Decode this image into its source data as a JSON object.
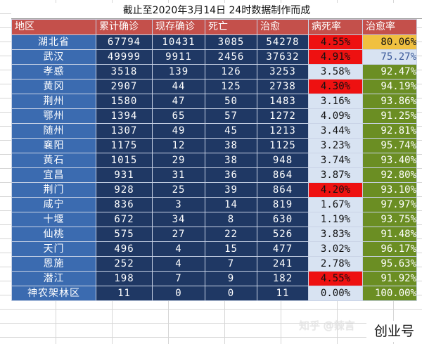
{
  "title": "截止至2020年3月14日 24时数据制作而成",
  "columns": [
    "地区",
    "累计确诊",
    "现存确诊",
    "死亡",
    "治愈",
    "病死率",
    "治愈率"
  ],
  "rows": [
    {
      "region": "湖北省",
      "total": "67794",
      "current": "10431",
      "deaths": "3085",
      "cured": "54278",
      "fatality": "4.55%",
      "recovery": "80.06%"
    },
    {
      "region": "武汉",
      "total": "49999",
      "current": "9911",
      "deaths": "2456",
      "cured": "37632",
      "fatality": "4.91%",
      "recovery": "75.27%"
    },
    {
      "region": "孝感",
      "total": "3518",
      "current": "139",
      "deaths": "126",
      "cured": "3253",
      "fatality": "3.58%",
      "recovery": "92.47%"
    },
    {
      "region": "黄冈",
      "total": "2907",
      "current": "44",
      "deaths": "125",
      "cured": "2738",
      "fatality": "4.30%",
      "recovery": "94.19%"
    },
    {
      "region": "荆州",
      "total": "1580",
      "current": "47",
      "deaths": "50",
      "cured": "1483",
      "fatality": "3.16%",
      "recovery": "93.86%"
    },
    {
      "region": "鄂州",
      "total": "1394",
      "current": "65",
      "deaths": "57",
      "cured": "1272",
      "fatality": "4.09%",
      "recovery": "91.25%"
    },
    {
      "region": "随州",
      "total": "1307",
      "current": "49",
      "deaths": "45",
      "cured": "1213",
      "fatality": "3.44%",
      "recovery": "92.81%"
    },
    {
      "region": "襄阳",
      "total": "1175",
      "current": "12",
      "deaths": "38",
      "cured": "1125",
      "fatality": "3.23%",
      "recovery": "95.74%"
    },
    {
      "region": "黄石",
      "total": "1015",
      "current": "29",
      "deaths": "38",
      "cured": "948",
      "fatality": "3.74%",
      "recovery": "93.40%"
    },
    {
      "region": "宜昌",
      "total": "931",
      "current": "31",
      "deaths": "36",
      "cured": "864",
      "fatality": "3.87%",
      "recovery": "92.80%"
    },
    {
      "region": "荆门",
      "total": "928",
      "current": "25",
      "deaths": "39",
      "cured": "864",
      "fatality": "4.20%",
      "recovery": "93.10%"
    },
    {
      "region": "咸宁",
      "total": "836",
      "current": "3",
      "deaths": "14",
      "cured": "819",
      "fatality": "1.67%",
      "recovery": "97.97%"
    },
    {
      "region": "十堰",
      "total": "672",
      "current": "34",
      "deaths": "8",
      "cured": "630",
      "fatality": "1.19%",
      "recovery": "93.75%"
    },
    {
      "region": "仙桃",
      "total": "575",
      "current": "27",
      "deaths": "22",
      "cured": "526",
      "fatality": "3.83%",
      "recovery": "91.48%"
    },
    {
      "region": "天门",
      "total": "496",
      "current": "4",
      "deaths": "15",
      "cured": "477",
      "fatality": "3.02%",
      "recovery": "96.17%"
    },
    {
      "region": "恩施",
      "total": "252",
      "current": "4",
      "deaths": "7",
      "cured": "241",
      "fatality": "2.78%",
      "recovery": "95.63%"
    },
    {
      "region": "潜江",
      "total": "198",
      "current": "7",
      "deaths": "9",
      "cured": "182",
      "fatality": "4.55%",
      "recovery": "91.92%"
    },
    {
      "region": "神农架林区",
      "total": "11",
      "current": "0",
      "deaths": "0",
      "cured": "11",
      "fatality": "0.00%",
      "recovery": "100.00%"
    }
  ],
  "highlight": {
    "fatality_alert_color": "#ee1111",
    "recovery_top_color": "#f0c040",
    "recovery_low_color": "#d8e3f2",
    "recovery_default_color": "#6b8e23"
  },
  "watermark": "知乎 @辣言",
  "brand": "创业号"
}
